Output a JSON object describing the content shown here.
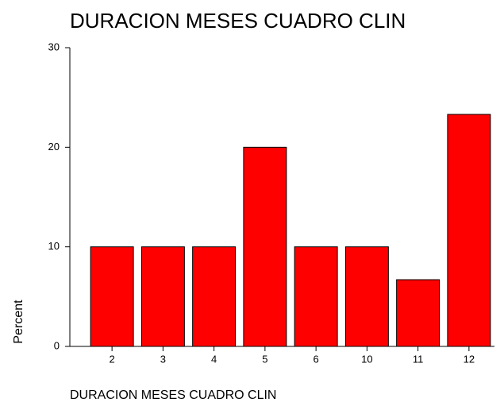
{
  "chart_data": {
    "type": "bar",
    "title": "DURACION MESES CUADRO CLIN",
    "x_label": "DURACION MESES CUADRO CLIN",
    "y_label": "Percent",
    "categories": [
      "2",
      "3",
      "4",
      "5",
      "6",
      "10",
      "11",
      "12"
    ],
    "values": [
      10,
      10,
      10,
      20,
      10,
      10,
      6.7,
      23.3
    ],
    "color": "#ff0000",
    "ylim": [
      0,
      30
    ],
    "yticks": [
      0,
      10,
      20,
      30
    ],
    "grid": false
  }
}
